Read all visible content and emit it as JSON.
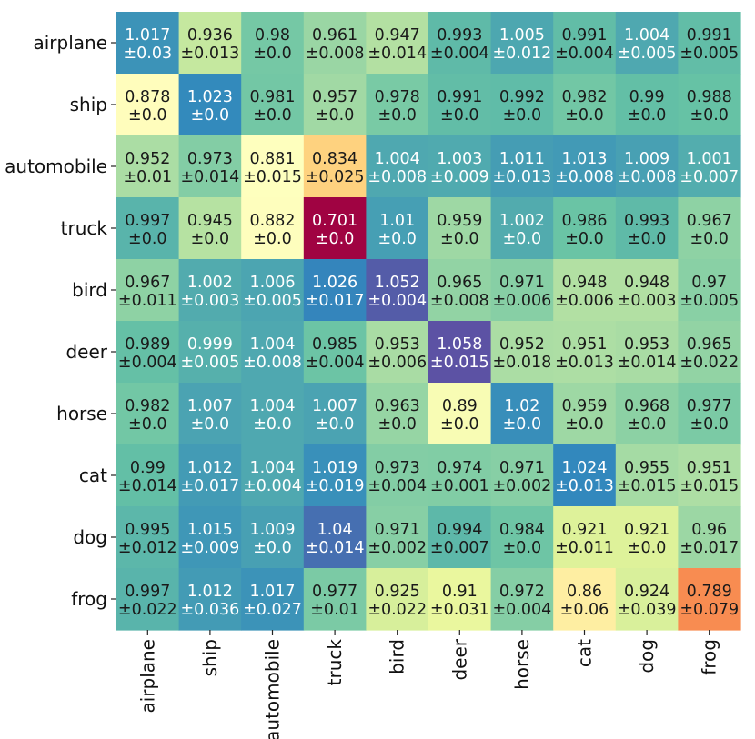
{
  "chart_data": {
    "type": "heatmap",
    "title": "",
    "xlabel": "",
    "ylabel": "",
    "rows": [
      "airplane",
      "ship",
      "automobile",
      "truck",
      "bird",
      "deer",
      "horse",
      "cat",
      "dog",
      "frog"
    ],
    "cols": [
      "airplane",
      "ship",
      "automobile",
      "truck",
      "bird",
      "deer",
      "horse",
      "cat",
      "dog",
      "frog"
    ],
    "values": [
      [
        1.017,
        0.936,
        0.98,
        0.961,
        0.947,
        0.993,
        1.005,
        0.991,
        1.004,
        0.991
      ],
      [
        0.878,
        1.023,
        0.981,
        0.957,
        0.978,
        0.991,
        0.992,
        0.982,
        0.99,
        0.988
      ],
      [
        0.952,
        0.973,
        0.881,
        0.834,
        1.004,
        1.003,
        1.011,
        1.013,
        1.009,
        1.001
      ],
      [
        0.997,
        0.945,
        0.882,
        0.701,
        1.01,
        0.959,
        1.002,
        0.986,
        0.993,
        0.967
      ],
      [
        0.967,
        1.002,
        1.006,
        1.026,
        1.052,
        0.965,
        0.971,
        0.948,
        0.948,
        0.97
      ],
      [
        0.989,
        0.999,
        1.004,
        0.985,
        0.953,
        1.058,
        0.952,
        0.951,
        0.953,
        0.965
      ],
      [
        0.982,
        1.007,
        1.004,
        1.007,
        0.963,
        0.89,
        1.02,
        0.959,
        0.968,
        0.977
      ],
      [
        0.99,
        1.012,
        1.004,
        1.019,
        0.973,
        0.974,
        0.971,
        1.024,
        0.955,
        0.951
      ],
      [
        0.995,
        1.015,
        1.009,
        1.04,
        0.971,
        0.994,
        0.984,
        0.921,
        0.921,
        0.96
      ],
      [
        0.997,
        1.012,
        1.017,
        0.977,
        0.925,
        0.91,
        0.972,
        0.86,
        0.924,
        0.789
      ]
    ],
    "values_text": [
      [
        "1.017",
        "0.936",
        "0.98",
        "0.961",
        "0.947",
        "0.993",
        "1.005",
        "0.991",
        "1.004",
        "0.991"
      ],
      [
        "0.878",
        "1.023",
        "0.981",
        "0.957",
        "0.978",
        "0.991",
        "0.992",
        "0.982",
        "0.99",
        "0.988"
      ],
      [
        "0.952",
        "0.973",
        "0.881",
        "0.834",
        "1.004",
        "1.003",
        "1.011",
        "1.013",
        "1.009",
        "1.001"
      ],
      [
        "0.997",
        "0.945",
        "0.882",
        "0.701",
        "1.01",
        "0.959",
        "1.002",
        "0.986",
        "0.993",
        "0.967"
      ],
      [
        "0.967",
        "1.002",
        "1.006",
        "1.026",
        "1.052",
        "0.965",
        "0.971",
        "0.948",
        "0.948",
        "0.97"
      ],
      [
        "0.989",
        "0.999",
        "1.004",
        "0.985",
        "0.953",
        "1.058",
        "0.952",
        "0.951",
        "0.953",
        "0.965"
      ],
      [
        "0.982",
        "1.007",
        "1.004",
        "1.007",
        "0.963",
        "0.89",
        "1.02",
        "0.959",
        "0.968",
        "0.977"
      ],
      [
        "0.99",
        "1.012",
        "1.004",
        "1.019",
        "0.973",
        "0.974",
        "0.971",
        "1.024",
        "0.955",
        "0.951"
      ],
      [
        "0.995",
        "1.015",
        "1.009",
        "1.04",
        "0.971",
        "0.994",
        "0.984",
        "0.921",
        "0.921",
        "0.96"
      ],
      [
        "0.997",
        "1.012",
        "1.017",
        "0.977",
        "0.925",
        "0.91",
        "0.972",
        "0.86",
        "0.924",
        "0.789"
      ]
    ],
    "errors": [
      [
        "±0.03",
        "±0.013",
        "±0.0",
        "±0.008",
        "±0.014",
        "±0.004",
        "±0.012",
        "±0.004",
        "±0.005",
        "±0.005"
      ],
      [
        "±0.0",
        "±0.0",
        "±0.0",
        "±0.0",
        "±0.0",
        "±0.0",
        "±0.0",
        "±0.0",
        "±0.0",
        "±0.0"
      ],
      [
        "±0.01",
        "±0.014",
        "±0.015",
        "±0.025",
        "±0.008",
        "±0.009",
        "±0.013",
        "±0.008",
        "±0.008",
        "±0.007"
      ],
      [
        "±0.0",
        "±0.0",
        "±0.0",
        "±0.0",
        "±0.0",
        "±0.0",
        "±0.0",
        "±0.0",
        "±0.0",
        "±0.0"
      ],
      [
        "±0.011",
        "±0.003",
        "±0.005",
        "±0.017",
        "±0.004",
        "±0.008",
        "±0.006",
        "±0.006",
        "±0.003",
        "±0.005"
      ],
      [
        "±0.004",
        "±0.005",
        "±0.008",
        "±0.004",
        "±0.006",
        "±0.015",
        "±0.018",
        "±0.013",
        "±0.014",
        "±0.022"
      ],
      [
        "±0.0",
        "±0.0",
        "±0.0",
        "±0.0",
        "±0.0",
        "±0.0",
        "±0.0",
        "±0.0",
        "±0.0",
        "±0.0"
      ],
      [
        "±0.014",
        "±0.017",
        "±0.004",
        "±0.019",
        "±0.004",
        "±0.001",
        "±0.002",
        "±0.013",
        "±0.015",
        "±0.015"
      ],
      [
        "±0.012",
        "±0.009",
        "±0.0",
        "±0.014",
        "±0.002",
        "±0.007",
        "±0.0",
        "±0.011",
        "±0.0",
        "±0.017"
      ],
      [
        "±0.022",
        "±0.036",
        "±0.027",
        "±0.01",
        "±0.022",
        "±0.031",
        "±0.004",
        "±0.06",
        "±0.039",
        "±0.079"
      ]
    ],
    "colormap": {
      "name": "Spectral",
      "vmin": 0.7,
      "vmax": 1.06,
      "stops": [
        "#9e0142",
        "#d53e4f",
        "#f46d43",
        "#fdae61",
        "#fee08b",
        "#ffffbf",
        "#e6f598",
        "#abdda4",
        "#66c2a5",
        "#3288bd",
        "#5e4fa2"
      ]
    },
    "text_colors": {
      "dark": "#1a1a1a",
      "light": "#ffffff"
    },
    "grid": false,
    "legend": "none"
  }
}
